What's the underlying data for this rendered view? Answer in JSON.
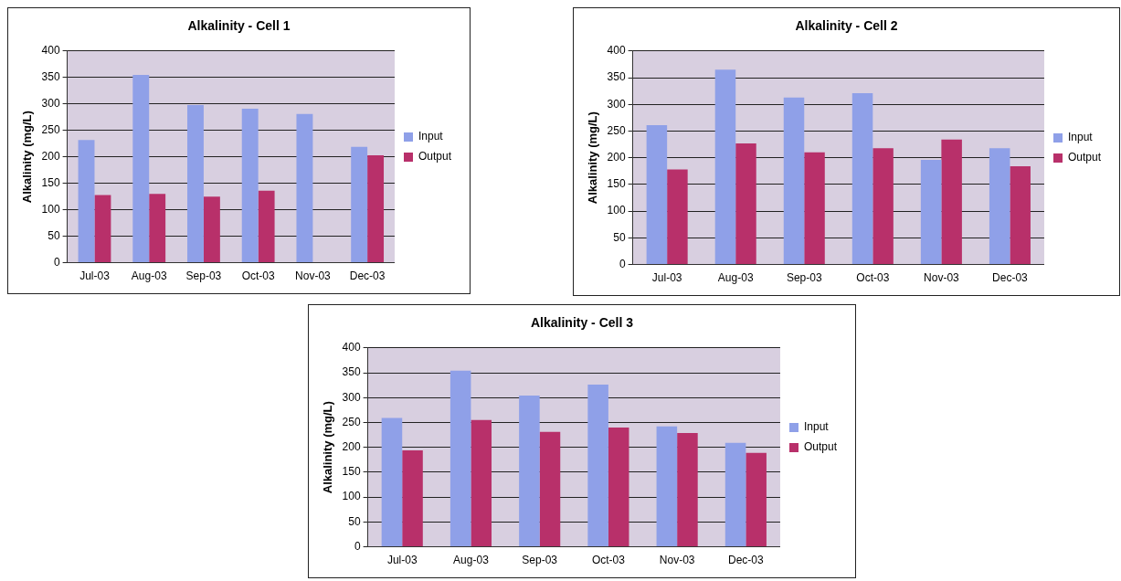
{
  "chart_data": [
    {
      "type": "bar",
      "title": "Alkalinity - Cell 1",
      "ylabel": "Alkalinity (mg/L)",
      "categories": [
        "Jul-03",
        "Aug-03",
        "Sep-03",
        "Oct-03",
        "Nov-03",
        "Dec-03"
      ],
      "series": [
        {
          "name": "Input",
          "color": "#8fa0e8",
          "values": [
            232,
            355,
            298,
            291,
            281,
            219
          ]
        },
        {
          "name": "Output",
          "color": "#b8306a",
          "values": [
            128,
            130,
            125,
            136,
            null,
            203
          ]
        }
      ],
      "ylim": [
        0,
        400
      ],
      "yticks": [
        0,
        50,
        100,
        150,
        200,
        250,
        300,
        350,
        400
      ],
      "grid": "y",
      "legend": "right"
    },
    {
      "type": "bar",
      "title": "Alkalinity - Cell 2",
      "ylabel": "Alkalinity (mg/L)",
      "categories": [
        "Jul-03",
        "Aug-03",
        "Sep-03",
        "Oct-03",
        "Nov-03",
        "Dec-03"
      ],
      "series": [
        {
          "name": "Input",
          "color": "#8fa0e8",
          "values": [
            261,
            365,
            313,
            321,
            196,
            218
          ]
        },
        {
          "name": "Output",
          "color": "#b8306a",
          "values": [
            178,
            227,
            210,
            218,
            234,
            184
          ]
        }
      ],
      "ylim": [
        0,
        400
      ],
      "yticks": [
        0,
        50,
        100,
        150,
        200,
        250,
        300,
        350,
        400
      ],
      "grid": "y",
      "legend": "right"
    },
    {
      "type": "bar",
      "title": "Alkalinity - Cell 3",
      "ylabel": "Alkalinity (mg/L)",
      "categories": [
        "Jul-03",
        "Aug-03",
        "Sep-03",
        "Oct-03",
        "Nov-03",
        "Dec-03"
      ],
      "series": [
        {
          "name": "Input",
          "color": "#8fa0e8",
          "values": [
            259,
            354,
            304,
            326,
            242,
            209
          ]
        },
        {
          "name": "Output",
          "color": "#b8306a",
          "values": [
            194,
            255,
            231,
            240,
            229,
            189
          ]
        }
      ],
      "ylim": [
        0,
        400
      ],
      "yticks": [
        0,
        50,
        100,
        150,
        200,
        250,
        300,
        350,
        400
      ],
      "grid": "y",
      "legend": "right"
    }
  ]
}
